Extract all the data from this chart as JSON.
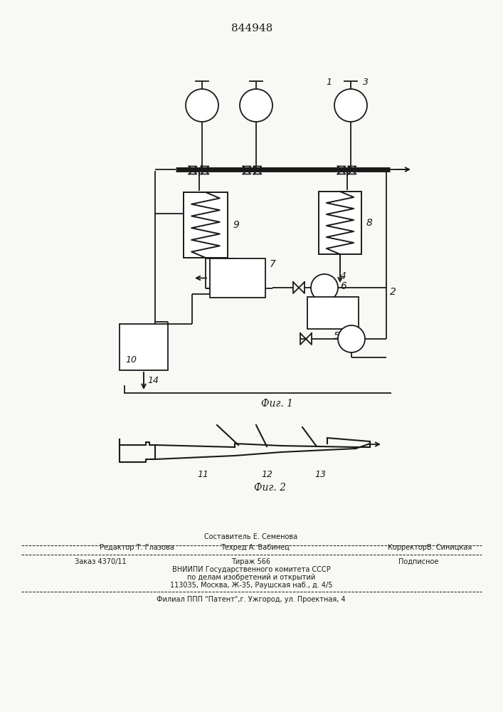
{
  "title": "844948",
  "fig1_label": "Фиг. 1",
  "fig2_label": "Фиг. 2",
  "bg_color": "#f8f8f5",
  "line_color": "#1a1a1a"
}
